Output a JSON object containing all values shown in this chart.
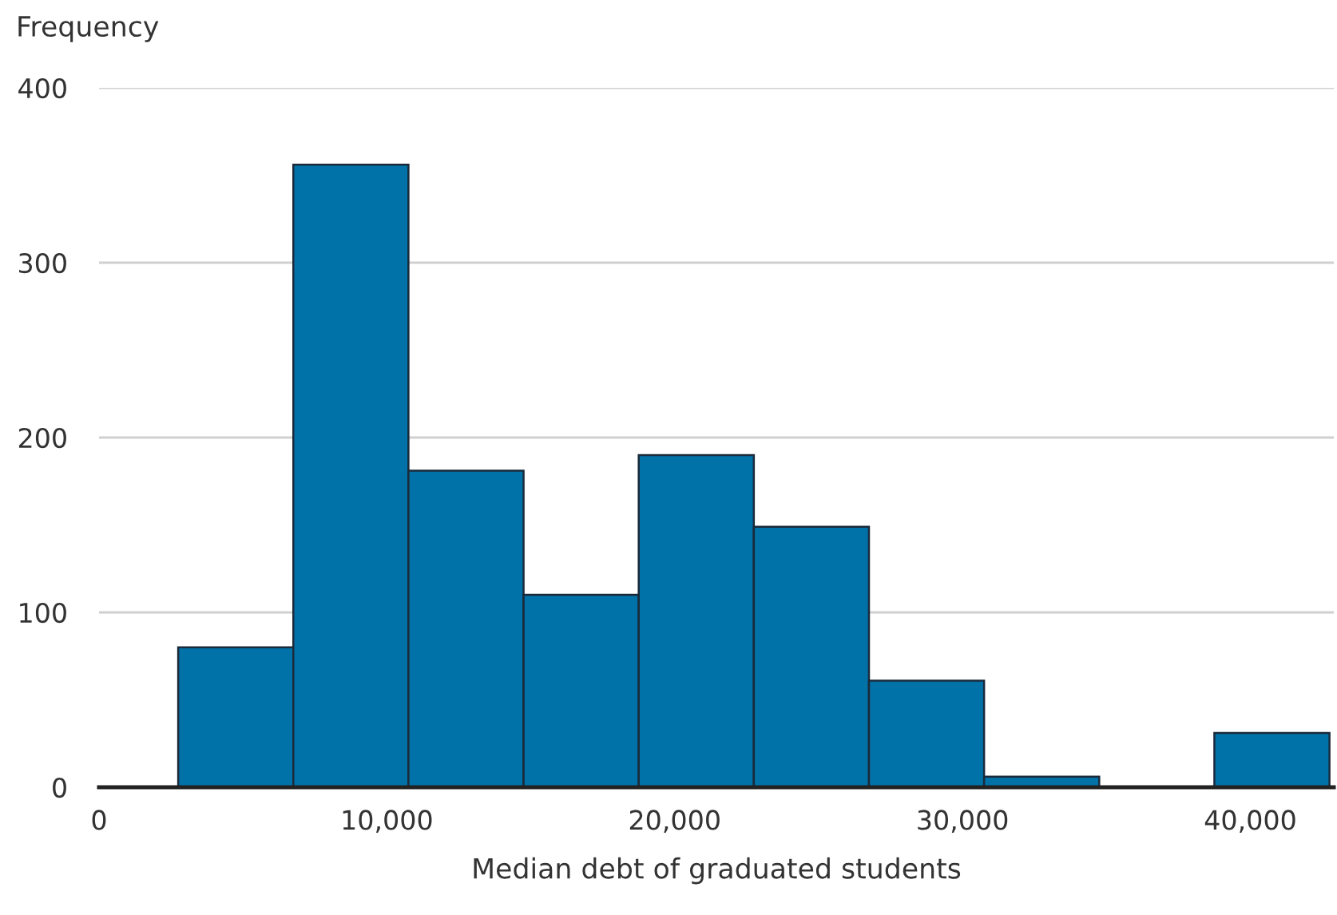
{
  "chart_data": {
    "type": "histogram",
    "ylabel": "Frequency",
    "xlabel": "Median debt of graduated students",
    "bins": [
      2750,
      6750,
      10750,
      14750,
      18750,
      22750,
      26750,
      30750,
      34750,
      38750,
      42750
    ],
    "values": [
      80,
      356,
      181,
      110,
      190,
      149,
      61,
      6,
      0,
      31
    ],
    "color": "#0072a8",
    "xlim": [
      0,
      42900
    ],
    "xticks": [
      0,
      {
        "value": 10000,
        "label": "10,000"
      },
      {
        "value": 20000,
        "label": "20,000"
      },
      {
        "value": 30000,
        "label": "30,000"
      },
      {
        "value": 40000,
        "label": "40,000"
      }
    ],
    "ylim": [
      0,
      400
    ],
    "yticks": [
      0,
      100,
      200,
      300,
      400
    ],
    "grid": "y"
  }
}
